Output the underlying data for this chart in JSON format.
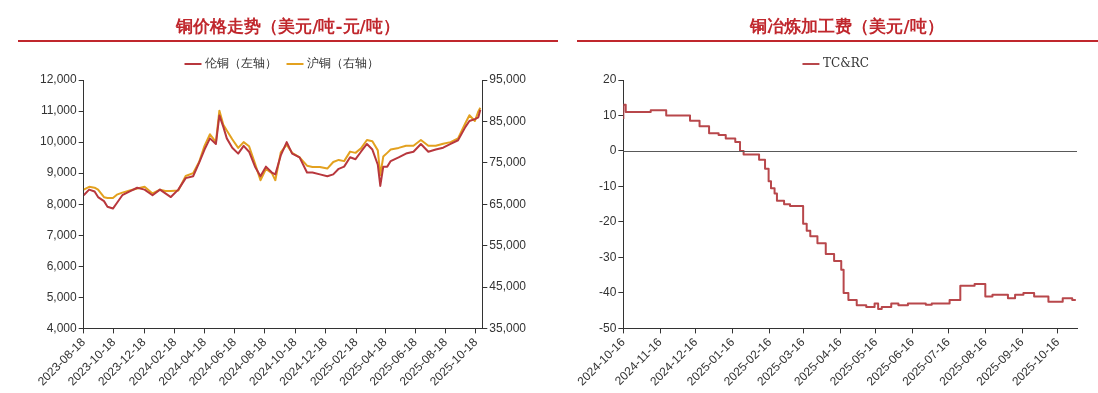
{
  "chart_data": [
    {
      "type": "line",
      "title": "铜价格走势（美元/吨-元/吨）",
      "legend": "top",
      "marker": "none",
      "grid": false,
      "xlim": [
        "2023-08-18",
        "2025-10-31"
      ],
      "xticks": [
        "2023-08-18",
        "2023-10-18",
        "2023-12-18",
        "2024-02-18",
        "2024-04-18",
        "2024-06-18",
        "2024-08-18",
        "2024-10-18",
        "2024-12-18",
        "2025-02-18",
        "2025-04-18",
        "2025-06-18",
        "2025-08-18",
        "2025-10-18"
      ],
      "ylim": [
        4000,
        12000
      ],
      "yticks": [
        {
          "value": 4000,
          "label": "4,000"
        },
        {
          "value": 5000,
          "label": "5,000"
        },
        {
          "value": 6000,
          "label": "6,000"
        },
        {
          "value": 7000,
          "label": "7,000"
        },
        {
          "value": 8000,
          "label": "8,000"
        },
        {
          "value": 9000,
          "label": "9,000"
        },
        {
          "value": 10000,
          "label": "10,000"
        },
        {
          "value": 11000,
          "label": "11,000"
        },
        {
          "value": 12000,
          "label": "12,000"
        }
      ],
      "y2lim": [
        35000,
        95000
      ],
      "y2ticks": [
        {
          "value": 35000,
          "label": "35,000"
        },
        {
          "value": 45000,
          "label": "45,000"
        },
        {
          "value": 55000,
          "label": "55,000"
        },
        {
          "value": 65000,
          "label": "65,000"
        },
        {
          "value": 75000,
          "label": "75,000"
        },
        {
          "value": 85000,
          "label": "85,000"
        },
        {
          "value": 95000,
          "label": "95,000"
        }
      ],
      "series": [
        {
          "name": "伦铜（左轴）",
          "color": "#b8373d",
          "x": [
            "2023-08-18",
            "2023-08-29",
            "2023-09-09",
            "2023-09-16",
            "2023-09-28",
            "2023-10-05",
            "2023-10-16",
            "2023-10-24",
            "2023-11-04",
            "2023-11-19",
            "2023-12-04",
            "2023-12-19",
            "2024-01-04",
            "2024-01-19",
            "2024-01-30",
            "2024-02-10",
            "2024-02-25",
            "2024-03-11",
            "2024-03-26",
            "2024-04-07",
            "2024-04-18",
            "2024-04-29",
            "2024-05-11",
            "2024-05-18",
            "2024-05-26",
            "2024-06-02",
            "2024-06-13",
            "2024-06-25",
            "2024-07-06",
            "2024-07-17",
            "2024-07-29",
            "2024-08-09",
            "2024-08-20",
            "2024-09-01",
            "2024-09-08",
            "2024-09-19",
            "2024-10-01",
            "2024-10-12",
            "2024-10-27",
            "2024-11-11",
            "2024-11-22",
            "2024-12-07",
            "2024-12-22",
            "2025-01-03",
            "2025-01-14",
            "2025-01-25",
            "2025-02-06",
            "2025-02-17",
            "2025-02-28",
            "2025-03-12",
            "2025-03-23",
            "2025-04-03",
            "2025-04-08",
            "2025-04-14",
            "2025-04-22",
            "2025-04-29",
            "2025-05-15",
            "2025-05-30",
            "2025-06-14",
            "2025-06-29",
            "2025-07-14",
            "2025-07-29",
            "2025-08-13",
            "2025-08-28",
            "2025-09-12",
            "2025-09-27",
            "2025-10-05",
            "2025-10-16",
            "2025-10-23",
            "2025-10-27"
          ],
          "values": [
            8290,
            8470,
            8410,
            8230,
            8100,
            7920,
            7860,
            8040,
            8290,
            8410,
            8530,
            8470,
            8290,
            8470,
            8350,
            8230,
            8470,
            8840,
            8900,
            9330,
            9760,
            10120,
            9940,
            10860,
            10490,
            10120,
            9820,
            9630,
            9880,
            9690,
            9210,
            8900,
            9210,
            9020,
            8960,
            9570,
            10000,
            9630,
            9510,
            9020,
            9020,
            8960,
            8900,
            8960,
            9140,
            9210,
            9510,
            9450,
            9690,
            9940,
            9760,
            9270,
            8590,
            9210,
            9210,
            9390,
            9510,
            9630,
            9690,
            9940,
            9690,
            9760,
            9820,
            9940,
            10060,
            10490,
            10680,
            10740,
            10800,
            11040
          ]
        },
        {
          "name": "沪铜（右轴）",
          "color": "#e3a11f",
          "axis": "y2",
          "x": [
            "2023-08-18",
            "2023-08-29",
            "2023-09-09",
            "2023-09-16",
            "2023-09-28",
            "2023-10-05",
            "2023-10-16",
            "2023-10-24",
            "2023-11-04",
            "2023-11-19",
            "2023-12-04",
            "2023-12-19",
            "2024-01-04",
            "2024-01-19",
            "2024-01-30",
            "2024-02-10",
            "2024-02-25",
            "2024-03-11",
            "2024-03-26",
            "2024-04-07",
            "2024-04-18",
            "2024-04-29",
            "2024-05-11",
            "2024-05-18",
            "2024-05-26",
            "2024-06-02",
            "2024-06-13",
            "2024-06-25",
            "2024-07-06",
            "2024-07-17",
            "2024-07-29",
            "2024-08-09",
            "2024-08-20",
            "2024-09-01",
            "2024-09-08",
            "2024-09-19",
            "2024-10-01",
            "2024-10-12",
            "2024-10-27",
            "2024-11-11",
            "2024-11-22",
            "2024-12-07",
            "2024-12-22",
            "2025-01-03",
            "2025-01-14",
            "2025-01-25",
            "2025-02-06",
            "2025-02-17",
            "2025-02-28",
            "2025-03-12",
            "2025-03-23",
            "2025-04-03",
            "2025-04-08",
            "2025-04-14",
            "2025-04-22",
            "2025-04-29",
            "2025-05-15",
            "2025-05-30",
            "2025-06-14",
            "2025-06-29",
            "2025-07-14",
            "2025-07-29",
            "2025-08-13",
            "2025-08-28",
            "2025-09-12",
            "2025-09-27",
            "2025-10-05",
            "2025-10-16",
            "2025-10-23",
            "2025-10-27"
          ],
          "values": [
            68500,
            69200,
            69000,
            68500,
            66700,
            66500,
            66500,
            67300,
            67800,
            68300,
            68800,
            69200,
            67600,
            68500,
            68200,
            68200,
            68300,
            71800,
            72500,
            75200,
            79100,
            81900,
            80000,
            87600,
            84200,
            82800,
            80700,
            78600,
            80000,
            79000,
            74800,
            70800,
            73500,
            72500,
            70800,
            77500,
            79400,
            77400,
            76300,
            74300,
            74000,
            74000,
            73600,
            75200,
            75700,
            75400,
            77700,
            77400,
            78500,
            80500,
            80200,
            78000,
            72000,
            76500,
            77400,
            78200,
            78600,
            79100,
            79100,
            80500,
            79100,
            79100,
            79600,
            80000,
            80900,
            84600,
            86500,
            85100,
            87400,
            88300
          ]
        }
      ]
    },
    {
      "type": "step",
      "title": "铜冶炼加工费（美元/吨）",
      "legend": "top",
      "marker": "none",
      "grid": false,
      "xlim": [
        "2024-10-16",
        "2025-11-01"
      ],
      "xticks": [
        "2024-10-16",
        "2024-11-16",
        "2024-12-16",
        "2025-01-16",
        "2025-02-16",
        "2025-03-16",
        "2025-04-16",
        "2025-05-16",
        "2025-06-16",
        "2025-07-16",
        "2025-08-16",
        "2025-09-16",
        "2025-10-16"
      ],
      "ylim": [
        -50,
        20
      ],
      "yticks": [
        -50,
        -40,
        -30,
        -20,
        -10,
        0,
        10,
        20
      ],
      "ref_lines": [
        {
          "axis": "y",
          "value": 0,
          "color": "#595959"
        }
      ],
      "series": [
        {
          "name": "TC&RC",
          "color": "#b8474b",
          "x": [
            "2024-10-16",
            "2024-10-18",
            "2024-11-08",
            "2024-11-21",
            "2024-12-11",
            "2024-12-19",
            "2024-12-27",
            "2025-01-04",
            "2025-01-10",
            "2025-01-18",
            "2025-01-22",
            "2025-01-25",
            "2025-02-07",
            "2025-02-12",
            "2025-02-15",
            "2025-02-17",
            "2025-02-20",
            "2025-02-22",
            "2025-02-28",
            "2025-03-05",
            "2025-03-16",
            "2025-03-19",
            "2025-03-22",
            "2025-03-28",
            "2025-04-04",
            "2025-04-11",
            "2025-04-17",
            "2025-04-19",
            "2025-04-23",
            "2025-04-30",
            "2025-05-08",
            "2025-05-15",
            "2025-05-18",
            "2025-05-21",
            "2025-05-29",
            "2025-06-04",
            "2025-06-12",
            "2025-06-27",
            "2025-07-02",
            "2025-07-17",
            "2025-07-26",
            "2025-08-07",
            "2025-08-16",
            "2025-08-22",
            "2025-09-04",
            "2025-09-10",
            "2025-09-17",
            "2025-09-26",
            "2025-10-08",
            "2025-10-20",
            "2025-10-28",
            "2025-10-31"
          ],
          "values": [
            9,
            13,
            11,
            11.5,
            10,
            8.5,
            7,
            5,
            4.5,
            3.5,
            2.5,
            0,
            -1,
            -2.5,
            -5,
            -8.5,
            -10.5,
            -12,
            -14,
            -15,
            -15.5,
            -20.5,
            -22.5,
            -24,
            -26,
            -29,
            -31,
            -33.5,
            -40,
            -42,
            -43.5,
            -44,
            -43,
            -44.5,
            -44,
            -43,
            -43.5,
            -43,
            -43.3,
            -43,
            -42,
            -38,
            -37.5,
            -41,
            -40.5,
            -41.5,
            -40.5,
            -40,
            -41,
            -42.5,
            -41.5,
            -42
          ]
        }
      ]
    }
  ]
}
